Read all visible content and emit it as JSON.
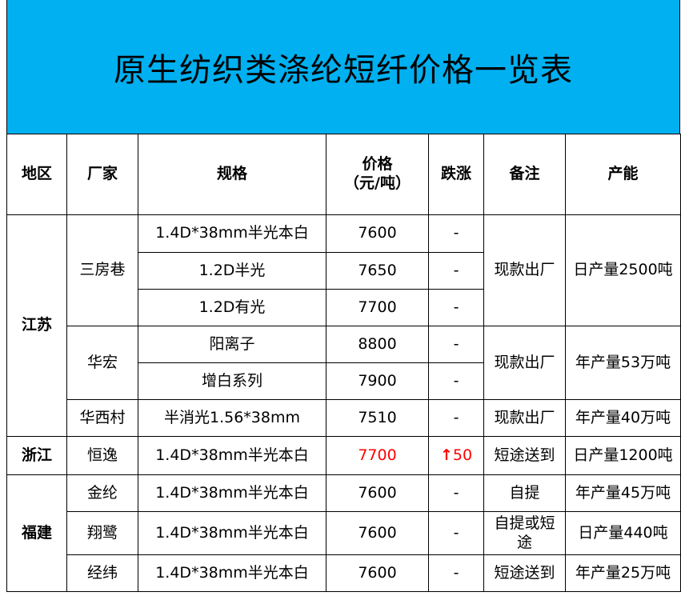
{
  "title": "原生纺织类涤纶短纤价格一览表",
  "colors": {
    "title_band": "#00B0F0",
    "rise": "#FF0000"
  },
  "headers": {
    "region": "地区",
    "factory": "厂家",
    "spec": "规格",
    "price_line1": "价格",
    "price_line2": "（元/吨）",
    "change": "跌涨",
    "note": "备注",
    "capacity": "产能"
  },
  "regions": {
    "jiangsu": "江苏",
    "zhejiang": "浙江",
    "fujian": "福建"
  },
  "rows": [
    {
      "factory": "三房巷",
      "spec": "1.4D*38mm半光本白",
      "price": "7600",
      "change": "-",
      "note": "现款出厂",
      "capacity": "日产量2500吨"
    },
    {
      "spec": "1.2D半光",
      "price": "7650",
      "change": "-"
    },
    {
      "spec": "1.2D有光",
      "price": "7700",
      "change": "-"
    },
    {
      "factory": "华宏",
      "spec": "阳离子",
      "price": "8800",
      "change": "-",
      "note": "现款出厂",
      "capacity": "年产量53万吨"
    },
    {
      "spec": "增白系列",
      "price": "7900",
      "change": "-"
    },
    {
      "factory": "华西村",
      "spec": "半消光1.56*38mm",
      "price": "7510",
      "change": "-",
      "note": "现款出厂",
      "capacity": "年产量40万吨"
    },
    {
      "factory": "恒逸",
      "spec": "1.4D*38mm半光本白",
      "price": "7700",
      "change_icon": "arrow-up-icon",
      "change_arrow": "↑",
      "change": "50",
      "note": "短途送到",
      "capacity": "日产量1200吨"
    },
    {
      "factory": "金纶",
      "spec": "1.4D*38mm半光本白",
      "price": "7600",
      "change": "-",
      "note": "自提",
      "capacity": "年产量45万吨"
    },
    {
      "factory": "翔鹭",
      "spec": "1.4D*38mm半光本白",
      "price": "7600",
      "change": "-",
      "note": "自提或短途",
      "capacity": "日产量440吨"
    },
    {
      "factory": "经纬",
      "spec": "1.4D*38mm半光本白",
      "price": "7600",
      "change": "-",
      "note": "短途送到",
      "capacity": "年产量25万吨"
    }
  ]
}
